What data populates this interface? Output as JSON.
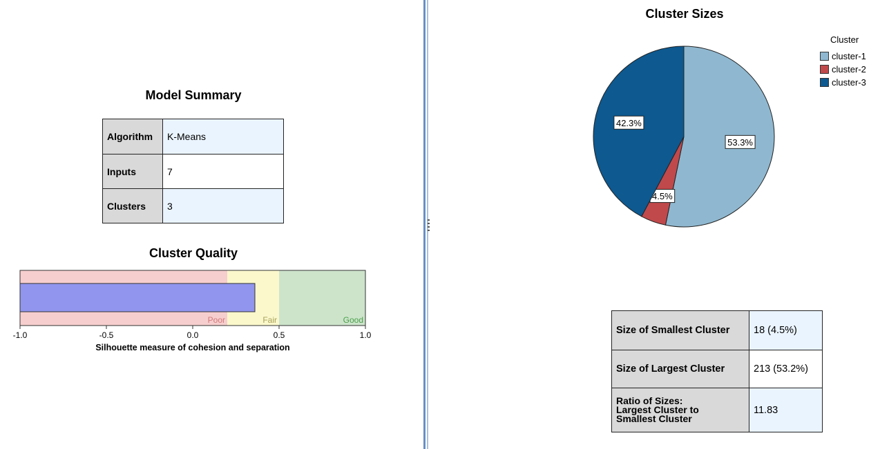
{
  "model_summary": {
    "title": "Model Summary",
    "rows": [
      {
        "key": "Algorithm",
        "value": "K-Means"
      },
      {
        "key": "Inputs",
        "value": "7"
      },
      {
        "key": "Clusters",
        "value": "3"
      }
    ]
  },
  "cluster_quality": {
    "title": "Cluster Quality",
    "zones": [
      "Poor",
      "Fair",
      "Good"
    ],
    "xlabel": "Silhouette measure of cohesion and separation"
  },
  "cluster_sizes": {
    "title": "Cluster Sizes",
    "legend_title": "Cluster"
  },
  "size_table": {
    "rows": [
      {
        "key": "Size of Smallest Cluster",
        "value": "18 (4.5%)"
      },
      {
        "key": "Size of Largest Cluster",
        "value": "213 (53.2%)"
      },
      {
        "key": "Ratio of Sizes:\nLargest Cluster to\nSmallest Cluster",
        "value": "11.83"
      }
    ]
  },
  "chart_data": [
    {
      "type": "bar",
      "orientation": "horizontal",
      "title": "Cluster Quality",
      "xlabel": "Silhouette measure of cohesion and separation",
      "xlim": [
        -1.0,
        1.0
      ],
      "ticks": [
        "-1.0",
        "-0.5",
        "0.0",
        "0.5",
        "1.0"
      ],
      "tick_values": [
        -1.0,
        -0.5,
        0.0,
        0.5,
        1.0
      ],
      "values": [
        0.36
      ],
      "zones": [
        {
          "label": "Poor",
          "from": -1.0,
          "to": 0.2,
          "color": "#f7cece"
        },
        {
          "label": "Fair",
          "from": 0.2,
          "to": 0.5,
          "color": "#fbf8cc"
        },
        {
          "label": "Good",
          "from": 0.5,
          "to": 1.0,
          "color": "#cde4cb"
        }
      ],
      "bar_color": "#9195ee"
    },
    {
      "type": "pie",
      "title": "Cluster Sizes",
      "legend_title": "Cluster",
      "legend_position": "top-right",
      "categories": [
        "cluster-1",
        "cluster-2",
        "cluster-3"
      ],
      "values": [
        53.3,
        4.5,
        42.3
      ],
      "labels": [
        "53.3%",
        "4.5%",
        "42.3%"
      ],
      "colors": [
        "#8fb8d0",
        "#c0494c",
        "#0d5990"
      ]
    }
  ]
}
